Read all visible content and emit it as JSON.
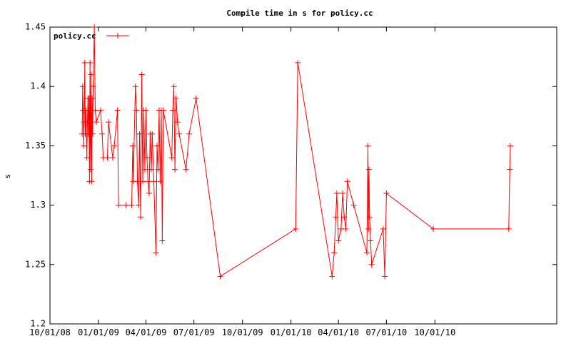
{
  "chart_data": {
    "type": "line",
    "title": "Compile time in s for policy.cc",
    "xlabel": "",
    "ylabel": "s",
    "xlim": [
      "2008-10-01",
      "2011-05-20"
    ],
    "ylim": [
      1.2,
      1.45
    ],
    "yticks": [
      "1.2",
      "1.25",
      "1.3",
      "1.35",
      "1.4",
      "1.45"
    ],
    "yticks_values": [
      1.2,
      1.25,
      1.3,
      1.35,
      1.4,
      1.45
    ],
    "xticks": [
      "10/01/08",
      "01/01/09",
      "04/01/09",
      "07/01/09",
      "10/01/09",
      "01/01/10",
      "04/01/10",
      "07/01/10",
      "10/01/10"
    ],
    "xticks_values": [
      "2008-10-01",
      "2009-01-01",
      "2009-04-01",
      "2009-07-01",
      "2009-10-01",
      "2010-01-01",
      "2010-04-01",
      "2010-07-01",
      "2010-10-01"
    ],
    "grid": false,
    "legend": {
      "position": "top-left"
    },
    "colors": {
      "series": "#ff0000",
      "axis": "#000000",
      "background": "#ffffff"
    },
    "series": [
      {
        "name": "policy.cc",
        "marker": "plus",
        "points": [
          [
            "2008-12-01",
            1.36
          ],
          [
            "2008-12-02",
            1.4
          ],
          [
            "2008-12-03",
            1.38
          ],
          [
            "2008-12-04",
            1.35
          ],
          [
            "2008-12-05",
            1.37
          ],
          [
            "2008-12-06",
            1.42
          ],
          [
            "2008-12-07",
            1.36
          ],
          [
            "2008-12-08",
            1.38
          ],
          [
            "2008-12-09",
            1.36
          ],
          [
            "2008-12-10",
            1.34
          ],
          [
            "2008-12-11",
            1.37
          ],
          [
            "2008-12-12",
            1.39
          ],
          [
            "2008-12-13",
            1.36
          ],
          [
            "2008-12-14",
            1.39
          ],
          [
            "2008-12-15",
            1.32
          ],
          [
            "2008-12-16",
            1.42
          ],
          [
            "2008-12-17",
            1.33
          ],
          [
            "2008-12-18",
            1.41
          ],
          [
            "2008-12-19",
            1.32
          ],
          [
            "2008-12-20",
            1.39
          ],
          [
            "2008-12-21",
            1.36
          ],
          [
            "2008-12-22",
            1.4
          ],
          [
            "2008-12-24",
            1.46
          ],
          [
            "2008-12-26",
            1.38
          ],
          [
            "2008-12-28",
            1.37
          ],
          [
            "2009-01-05",
            1.38
          ],
          [
            "2009-01-08",
            1.36
          ],
          [
            "2009-01-10",
            1.34
          ],
          [
            "2009-01-18",
            1.34
          ],
          [
            "2009-01-20",
            1.37
          ],
          [
            "2009-01-28",
            1.34
          ],
          [
            "2009-01-31",
            1.35
          ],
          [
            "2009-02-06",
            1.38
          ],
          [
            "2009-02-08",
            1.3
          ],
          [
            "2009-02-22",
            1.3
          ],
          [
            "2009-03-05",
            1.3
          ],
          [
            "2009-03-07",
            1.35
          ],
          [
            "2009-03-08",
            1.32
          ],
          [
            "2009-03-12",
            1.4
          ],
          [
            "2009-03-14",
            1.38
          ],
          [
            "2009-03-16",
            1.32
          ],
          [
            "2009-03-18",
            1.3
          ],
          [
            "2009-03-20",
            1.36
          ],
          [
            "2009-03-22",
            1.29
          ],
          [
            "2009-03-24",
            1.41
          ],
          [
            "2009-03-26",
            1.32
          ],
          [
            "2009-03-28",
            1.38
          ],
          [
            "2009-03-30",
            1.33
          ],
          [
            "2009-04-01",
            1.38
          ],
          [
            "2009-04-03",
            1.34
          ],
          [
            "2009-04-05",
            1.32
          ],
          [
            "2009-04-07",
            1.31
          ],
          [
            "2009-04-09",
            1.36
          ],
          [
            "2009-04-11",
            1.33
          ],
          [
            "2009-04-13",
            1.36
          ],
          [
            "2009-04-16",
            1.32
          ],
          [
            "2009-04-20",
            1.26
          ],
          [
            "2009-04-22",
            1.35
          ],
          [
            "2009-04-24",
            1.33
          ],
          [
            "2009-04-26",
            1.38
          ],
          [
            "2009-04-28",
            1.32
          ],
          [
            "2009-04-30",
            1.38
          ],
          [
            "2009-05-02",
            1.27
          ],
          [
            "2009-05-04",
            1.38
          ],
          [
            "2009-05-20",
            1.34
          ],
          [
            "2009-05-22",
            1.38
          ],
          [
            "2009-05-24",
            1.4
          ],
          [
            "2009-05-26",
            1.33
          ],
          [
            "2009-05-28",
            1.39
          ],
          [
            "2009-05-31",
            1.37
          ],
          [
            "2009-06-03",
            1.36
          ],
          [
            "2009-06-16",
            1.33
          ],
          [
            "2009-06-22",
            1.36
          ],
          [
            "2009-07-05",
            1.39
          ],
          [
            "2009-08-20",
            1.24
          ],
          [
            "2010-01-10",
            1.28
          ],
          [
            "2010-01-14",
            1.42
          ],
          [
            "2010-03-20",
            1.24
          ],
          [
            "2010-03-24",
            1.26
          ],
          [
            "2010-03-27",
            1.29
          ],
          [
            "2010-03-29",
            1.31
          ],
          [
            "2010-04-01",
            1.27
          ],
          [
            "2010-04-06",
            1.28
          ],
          [
            "2010-04-09",
            1.31
          ],
          [
            "2010-04-12",
            1.29
          ],
          [
            "2010-04-15",
            1.28
          ],
          [
            "2010-04-18",
            1.32
          ],
          [
            "2010-04-30",
            1.3
          ],
          [
            "2010-05-25",
            1.26
          ],
          [
            "2010-05-27",
            1.35
          ],
          [
            "2010-05-28",
            1.28
          ],
          [
            "2010-05-29",
            1.33
          ],
          [
            "2010-05-30",
            1.29
          ],
          [
            "2010-06-01",
            1.27
          ],
          [
            "2010-06-03",
            1.25
          ],
          [
            "2010-06-25",
            1.28
          ],
          [
            "2010-06-28",
            1.24
          ],
          [
            "2010-07-01",
            1.31
          ],
          [
            "2010-09-28",
            1.28
          ],
          [
            "2011-02-18",
            1.28
          ],
          [
            "2011-02-20",
            1.33
          ],
          [
            "2011-02-21",
            1.35
          ]
        ]
      }
    ]
  }
}
